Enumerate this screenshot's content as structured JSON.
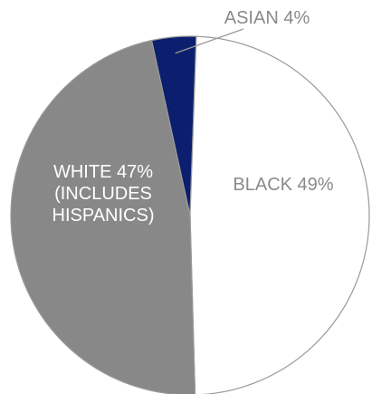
{
  "chart_data": {
    "type": "pie",
    "title": "",
    "slices": [
      {
        "category": "ASIAN",
        "value": 4,
        "color": "#0b1f6e",
        "label": [
          "ASIAN 4%"
        ]
      },
      {
        "category": "BLACK",
        "value": 49,
        "color": "#ffffff",
        "label": [
          "BLACK 49%"
        ]
      },
      {
        "category": "WHITE",
        "value": 47,
        "color": "#888888",
        "label": [
          "WHITE 47%",
          "(INCLUDES",
          "HISPANICS)"
        ]
      }
    ],
    "legend": "none",
    "slice_outline_color": "#9a9a9a"
  }
}
